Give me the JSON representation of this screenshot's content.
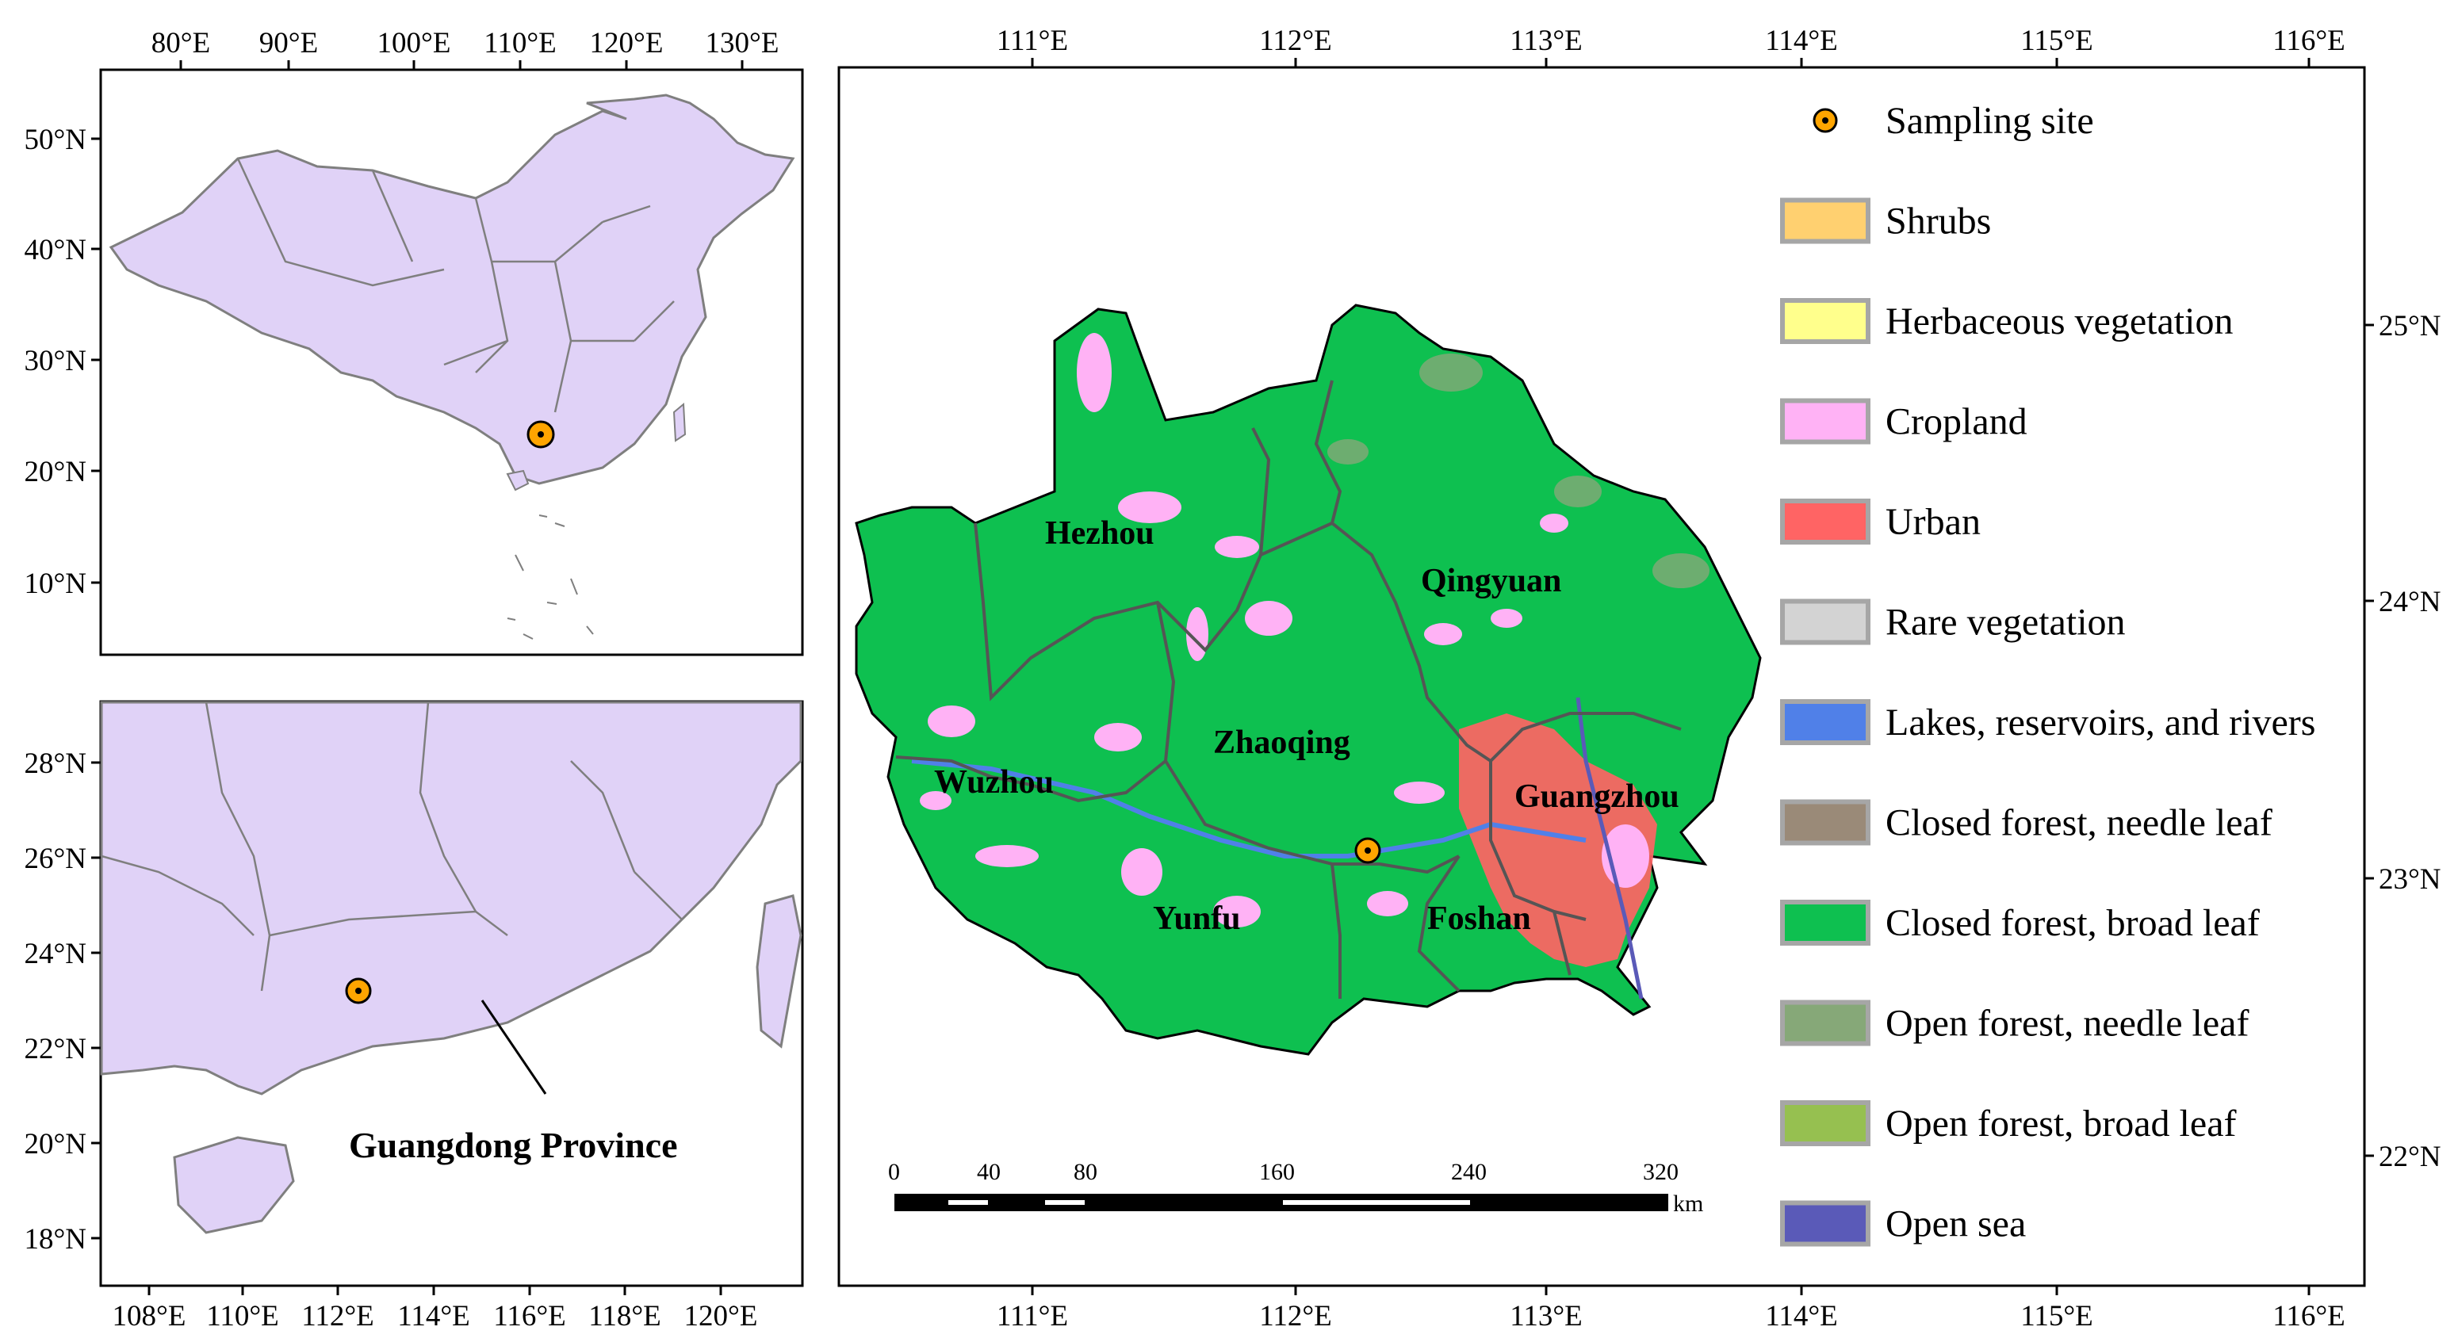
{
  "colors": {
    "land_lavender": "#e0d2f7",
    "boundary_gray": "#7f7f7f",
    "forest_broad": "#0ec050",
    "urban": "#ff6464",
    "cropland": "#ffb2f5",
    "site_fill": "#ffa500"
  },
  "inset_china": {
    "x_ticks": [
      "80°E",
      "90°E",
      "100°E",
      "110°E",
      "120°E",
      "130°E"
    ],
    "y_ticks": [
      "50°N",
      "40°N",
      "30°N",
      "20°N",
      "10°N"
    ]
  },
  "inset_guangdong": {
    "x_ticks": [
      "108°E",
      "110°E",
      "112°E",
      "114°E",
      "116°E",
      "118°E",
      "120°E"
    ],
    "y_ticks": [
      "28°N",
      "26°N",
      "24°N",
      "22°N",
      "20°N",
      "18°N"
    ],
    "province_label": "Guangdong Province"
  },
  "main_map": {
    "x_ticks": [
      "111°E",
      "112°E",
      "113°E",
      "114°E",
      "115°E",
      "116°E"
    ],
    "y_ticks": [
      "25°N",
      "24°N",
      "23°N",
      "22°N"
    ],
    "cities": [
      "Hezhou",
      "Qingyuan",
      "Zhaoqing",
      "Wuzhou",
      "Guangzhou",
      "Yunfu",
      "Foshan"
    ]
  },
  "legend": [
    {
      "label": "Sampling site",
      "type": "point",
      "color": "#ffa500"
    },
    {
      "label": "Shrubs",
      "type": "swatch",
      "color": "#ffd070"
    },
    {
      "label": "Herbaceous vegetation",
      "type": "swatch",
      "color": "#ffff8c"
    },
    {
      "label": "Cropland",
      "type": "swatch",
      "color": "#ffb2f5"
    },
    {
      "label": "Urban",
      "type": "swatch",
      "color": "#ff6464"
    },
    {
      "label": "Rare vegetation",
      "type": "swatch",
      "color": "#d3d3d3"
    },
    {
      "label": "Lakes, reservoirs, and rivers",
      "type": "swatch",
      "color": "#5080e8"
    },
    {
      "label": "Closed forest, needle leaf",
      "type": "swatch",
      "color": "#9a8a78"
    },
    {
      "label": "Closed forest, broad leaf",
      "type": "swatch",
      "color": "#0ec050"
    },
    {
      "label": "Open forest, needle leaf",
      "type": "swatch",
      "color": "#86a878"
    },
    {
      "label": "Open forest, broad leaf",
      "type": "swatch",
      "color": "#96c050"
    },
    {
      "label": "Open sea",
      "type": "swatch",
      "color": "#5a5ab8"
    }
  ],
  "scale_bar": {
    "labels": [
      "0",
      "40",
      "80",
      "160",
      "240",
      "320"
    ],
    "unit": "km"
  }
}
